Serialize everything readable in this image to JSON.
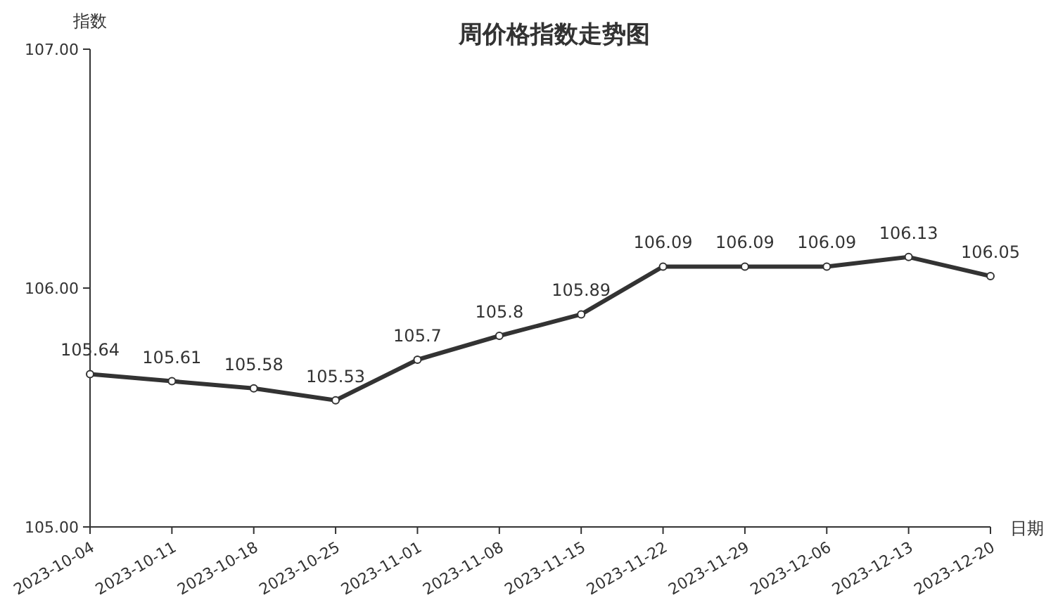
{
  "chart_data": {
    "type": "line",
    "title": "周价格指数走势图",
    "xlabel": "日期",
    "ylabel": "指数",
    "categories": [
      "2023-10-04",
      "2023-10-11",
      "2023-10-18",
      "2023-10-25",
      "2023-11-01",
      "2023-11-08",
      "2023-11-15",
      "2023-11-22",
      "2023-11-29",
      "2023-12-06",
      "2023-12-13",
      "2023-12-20"
    ],
    "values": [
      105.64,
      105.61,
      105.58,
      105.53,
      105.7,
      105.8,
      105.89,
      106.09,
      106.09,
      106.09,
      106.13,
      106.05
    ],
    "color": "#333333",
    "ylim": [
      105,
      107
    ],
    "yticks": [
      {
        "value": 105,
        "label": "105.00"
      },
      {
        "value": 106,
        "label": "106.00"
      },
      {
        "value": 107,
        "label": "107.00"
      }
    ],
    "data_labels": true,
    "marker": "circle",
    "line_style": "solid"
  }
}
